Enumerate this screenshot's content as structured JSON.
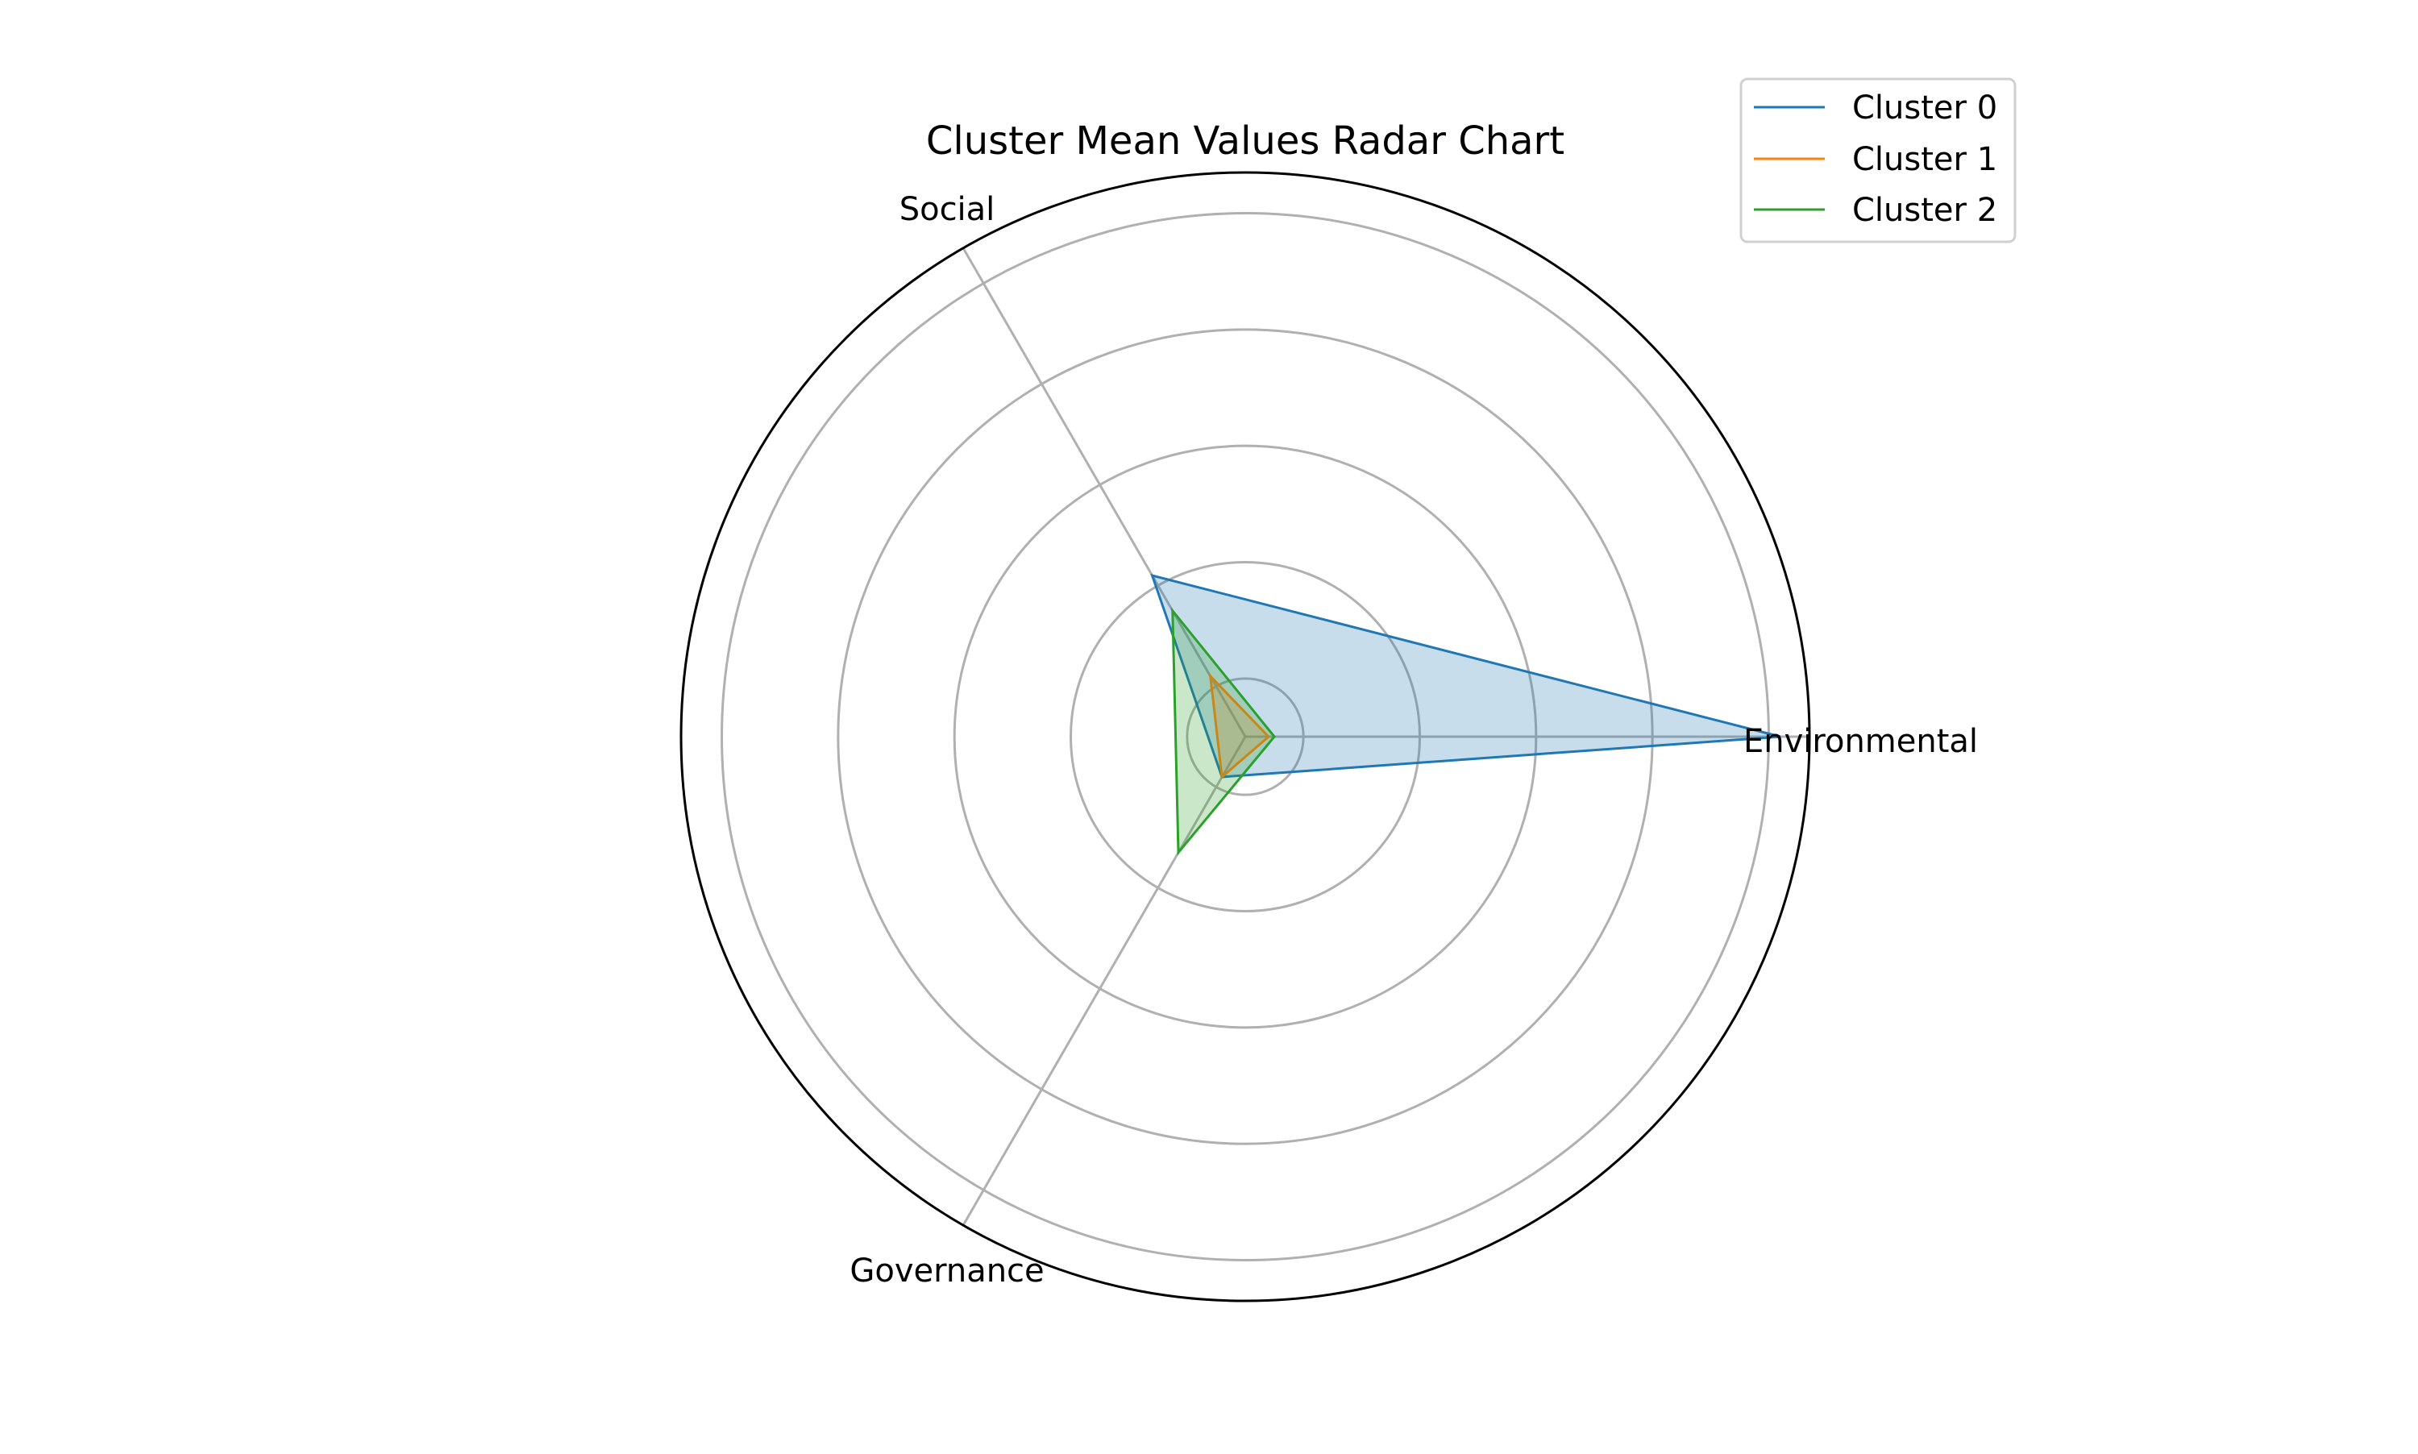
{
  "chart_data": {
    "type": "radar",
    "title": "Cluster Mean Values Radar Chart",
    "axes": [
      "Environmental",
      "Social",
      "Governance"
    ],
    "rlim": [
      0,
      0.97
    ],
    "grid": true,
    "legend_position": "top-right",
    "series": [
      {
        "name": "Cluster 0",
        "color": "#1f77b4",
        "values": {
          "Environmental": 0.92,
          "Social": 0.32,
          "Governance": 0.08
        }
      },
      {
        "name": "Cluster 1",
        "color": "#ff7f0e",
        "values": {
          "Environmental": 0.04,
          "Social": 0.12,
          "Governance": 0.08
        }
      },
      {
        "name": "Cluster 2",
        "color": "#2ca02c",
        "values": {
          "Environmental": 0.05,
          "Social": 0.25,
          "Governance": 0.23
        }
      }
    ]
  }
}
